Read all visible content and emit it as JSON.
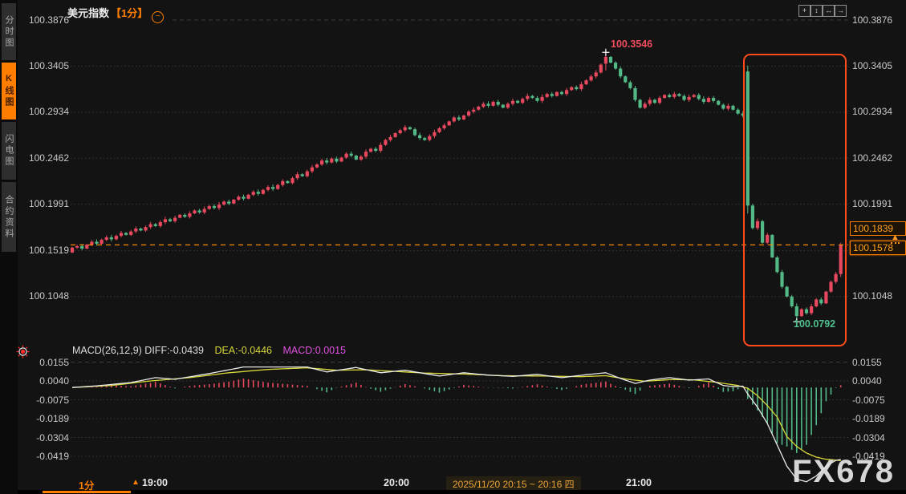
{
  "app": {
    "title": "美元指数",
    "period_tag": "【1分】",
    "collapse_glyph": "−",
    "watermark": "FX678"
  },
  "sidebar": {
    "active_index": 1,
    "tabs": [
      {
        "label": "分时图"
      },
      {
        "label": "K线图"
      },
      {
        "label": "闪电图"
      },
      {
        "label": "合约资料"
      }
    ]
  },
  "toolbar": {
    "buttons": [
      {
        "name": "crosshair",
        "glyph": "+"
      },
      {
        "name": "vertical-scale",
        "glyph": "↕"
      },
      {
        "name": "horizontal-scale",
        "glyph": "↔"
      },
      {
        "name": "pan-right",
        "glyph": "→"
      }
    ]
  },
  "axes": {
    "price_left": [
      "100.3876",
      "100.3405",
      "100.2934",
      "100.2462",
      "100.1991",
      "100.1519",
      "100.1048"
    ],
    "price_right": [
      "100.3876",
      "100.3405",
      "100.2934",
      "100.2462",
      "100.1991",
      "100.1048"
    ],
    "macd_left": [
      "0.0155",
      "0.0040",
      "-0.0075",
      "-0.0189",
      "-0.0304",
      "-0.0419"
    ],
    "macd_right": [
      "0.0155",
      "0.0040",
      "-0.0075",
      "-0.0189",
      "-0.0304",
      "-0.0419"
    ],
    "time": [
      "19:00",
      "20:00",
      "21:00"
    ],
    "date_range": "2025/11/20 20:15 ~ 20:16 四"
  },
  "annotations": {
    "high": "100.3546",
    "low": "100.0792"
  },
  "price_tags": {
    "upper": "100.1839",
    "current": "100.1578"
  },
  "indicator_header": {
    "macd_label": "MACD(26,12,9) DIFF:-0.0439",
    "dea": "DEA:-0.0446",
    "macd": "MACD:0.0015"
  },
  "period_selector": {
    "label": "1分",
    "arrow": "▲"
  },
  "alert_marker_glyph": "▲",
  "colors": {
    "up": "#e8495f",
    "down": "#53b987",
    "accent": "#ff7e00",
    "highlight": "#ff4a1c",
    "diff_line": "#e9e9e9",
    "dea_line": "#d6d63a",
    "macd_value": "#e051e0",
    "grid": "#3c3c3c",
    "current_line": "#ff8a00"
  },
  "chart_data": {
    "type": "candlestick_with_macd",
    "title": "美元指数 1分钟K线",
    "price_axis_ticks": [
      100.3876,
      100.3405,
      100.2934,
      100.2462,
      100.1991,
      100.1519,
      100.1048
    ],
    "macd_axis_ticks": [
      0.0155,
      0.004,
      -0.0075,
      -0.0189,
      -0.0304,
      -0.0419
    ],
    "time_ticks": [
      "19:00",
      "20:00",
      "21:00"
    ],
    "high_annotation": 100.3546,
    "low_annotation": 100.0792,
    "current_price": 100.1578,
    "upper_tag_price": 100.1839,
    "macd_params": [
      26,
      12,
      9
    ],
    "macd_final": {
      "diff": -0.0439,
      "dea": -0.0446,
      "macd": 0.0015
    },
    "candles": {
      "open_first": 100.15,
      "close": [
        100.155,
        100.1565,
        100.154,
        100.158,
        100.161,
        100.159,
        100.163,
        100.1655,
        100.1635,
        100.167,
        100.17,
        100.168,
        100.1715,
        100.1745,
        100.1725,
        100.176,
        100.179,
        100.177,
        100.181,
        100.184,
        100.182,
        100.1855,
        100.1885,
        100.1865,
        100.19,
        100.193,
        100.191,
        100.1945,
        100.1975,
        100.1955,
        100.199,
        100.202,
        100.2,
        100.204,
        100.207,
        100.205,
        100.209,
        100.212,
        100.21,
        100.214,
        100.217,
        100.215,
        100.219,
        100.223,
        100.221,
        100.226,
        100.23,
        100.228,
        100.233,
        100.237,
        100.24,
        100.244,
        100.242,
        100.246,
        100.243,
        100.247,
        100.251,
        100.249,
        100.245,
        100.248,
        100.253,
        100.256,
        100.254,
        100.26,
        100.265,
        100.268,
        100.272,
        100.275,
        100.278,
        100.276,
        100.27,
        100.267,
        100.265,
        100.269,
        100.273,
        100.277,
        100.28,
        100.284,
        100.288,
        100.286,
        100.29,
        100.294,
        100.296,
        100.299,
        100.302,
        100.3,
        100.304,
        100.301,
        100.298,
        100.302,
        100.305,
        100.303,
        100.307,
        100.31,
        100.308,
        100.305,
        100.309,
        100.312,
        100.31,
        100.314,
        100.312,
        100.316,
        100.319,
        100.317,
        100.322,
        100.326,
        100.33,
        100.334,
        100.342,
        100.35,
        100.344,
        100.338,
        100.33,
        100.324,
        100.318,
        100.306,
        100.298,
        100.302,
        100.306,
        100.303,
        100.308,
        100.311,
        100.309,
        100.312,
        100.31,
        100.306,
        100.309,
        100.311,
        100.307,
        100.304,
        100.308,
        100.305,
        100.301,
        100.297,
        100.3,
        100.296,
        100.292,
        100.29,
        100.198,
        100.175,
        100.182,
        100.16,
        100.168,
        100.145,
        100.13,
        100.115,
        100.105,
        100.095,
        100.085,
        100.092,
        100.088,
        100.095,
        100.102,
        100.098,
        100.11,
        100.12,
        100.128,
        100.1578
      ],
      "ohlc_overrides": {
        "109": [
          100.343,
          100.3546,
          100.336,
          100.35
        ],
        "138": [
          100.335,
          100.341,
          100.19,
          100.198
        ],
        "148": [
          100.095,
          100.098,
          100.0792,
          100.085
        ],
        "157": [
          100.128,
          100.16,
          100.125,
          100.1578
        ]
      }
    },
    "macd_series": {
      "diff_points": [
        [
          0,
          0
        ],
        [
          5,
          0.001
        ],
        [
          12,
          0.003
        ],
        [
          17,
          0.006
        ],
        [
          21,
          0.005
        ],
        [
          28,
          0.0085
        ],
        [
          35,
          0.0125
        ],
        [
          48,
          0.0125
        ],
        [
          52,
          0.0095
        ],
        [
          58,
          0.0122
        ],
        [
          63,
          0.009
        ],
        [
          68,
          0.0105
        ],
        [
          75,
          0.007
        ],
        [
          80,
          0.009
        ],
        [
          85,
          0.0075
        ],
        [
          90,
          0.0068
        ],
        [
          95,
          0.008
        ],
        [
          100,
          0.006
        ],
        [
          105,
          0.0078
        ],
        [
          109,
          0.009
        ],
        [
          112,
          0.0055
        ],
        [
          115,
          0.0025
        ],
        [
          118,
          0.0045
        ],
        [
          122,
          0.006
        ],
        [
          126,
          0.0045
        ],
        [
          130,
          0.0052
        ],
        [
          133,
          0.0012
        ],
        [
          135,
          0.0005
        ],
        [
          137,
          0.0008
        ],
        [
          138,
          -0.004
        ],
        [
          140,
          -0.012
        ],
        [
          142,
          -0.022
        ],
        [
          144,
          -0.035
        ],
        [
          146,
          -0.048
        ],
        [
          148,
          -0.056
        ],
        [
          150,
          -0.0575
        ],
        [
          152,
          -0.054
        ],
        [
          154,
          -0.048
        ],
        [
          156,
          -0.0445
        ],
        [
          157,
          -0.0439
        ]
      ],
      "dea_points": [
        [
          0,
          0
        ],
        [
          8,
          0.0012
        ],
        [
          16,
          0.004
        ],
        [
          24,
          0.006
        ],
        [
          32,
          0.009
        ],
        [
          40,
          0.011
        ],
        [
          48,
          0.012
        ],
        [
          54,
          0.0105
        ],
        [
          60,
          0.0108
        ],
        [
          66,
          0.0098
        ],
        [
          72,
          0.0088
        ],
        [
          80,
          0.0082
        ],
        [
          88,
          0.0072
        ],
        [
          96,
          0.007
        ],
        [
          104,
          0.0066
        ],
        [
          109,
          0.0072
        ],
        [
          113,
          0.0052
        ],
        [
          117,
          0.0038
        ],
        [
          122,
          0.0048
        ],
        [
          127,
          0.0047
        ],
        [
          132,
          0.003
        ],
        [
          136,
          0.0012
        ],
        [
          138,
          -0.0005
        ],
        [
          140,
          -0.005
        ],
        [
          142,
          -0.011
        ],
        [
          144,
          -0.018
        ],
        [
          146,
          -0.03
        ],
        [
          148,
          -0.036
        ],
        [
          150,
          -0.04
        ],
        [
          152,
          -0.0425
        ],
        [
          154,
          -0.0438
        ],
        [
          157,
          -0.0446
        ]
      ]
    }
  }
}
